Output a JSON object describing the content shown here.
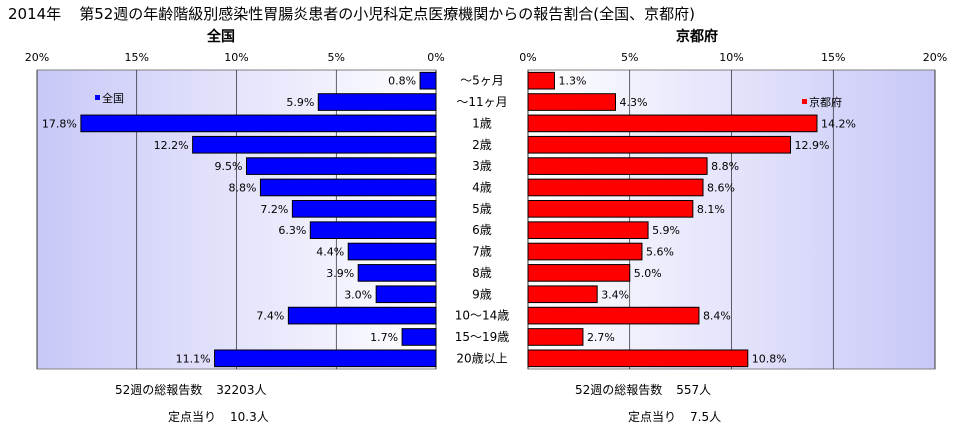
{
  "header": {
    "year": "2014年",
    "title": "第52週の年齢階級別感染性胃腸炎患者の小児科定点医療機関からの報告割合(全国、京都府)"
  },
  "panels": {
    "left_title": "全国",
    "right_title": "京都府"
  },
  "footer": {
    "left": {
      "total_label": "52週の総報告数",
      "total_value": "32203人",
      "per_label": "定点当り",
      "per_value": "10.3人"
    },
    "right": {
      "total_label": "52週の総報告数",
      "total_value": "557人",
      "per_label": "定点当り",
      "per_value": "7.5人"
    }
  },
  "colors": {
    "national": "#0000ff",
    "kyoto": "#ff0000",
    "bar_border": "#000000",
    "plot_bg_center": "#ffffff",
    "plot_bg_edge": "#c8c8f8"
  },
  "chart_data": [
    {
      "type": "bar",
      "orientation": "horizontal",
      "direction": "right-to-left",
      "title": "全国",
      "categories": [
        "～5ヶ月",
        "～11ヶ月",
        "1歳",
        "2歳",
        "3歳",
        "4歳",
        "5歳",
        "6歳",
        "7歳",
        "8歳",
        "9歳",
        "10～14歳",
        "15～19歳",
        "20歳以上"
      ],
      "series": [
        {
          "name": "全国",
          "values": [
            0.8,
            5.9,
            17.8,
            12.2,
            9.5,
            8.8,
            7.2,
            6.3,
            4.4,
            3.9,
            3.0,
            7.4,
            1.7,
            11.1
          ]
        }
      ],
      "xlim": [
        0,
        20
      ],
      "ticks": [
        "20%",
        "15%",
        "10%",
        "5%",
        "0%"
      ],
      "data_labels": [
        "0.8%",
        "5.9%",
        "17.8%",
        "12.2%",
        "9.5%",
        "8.8%",
        "7.2%",
        "6.3%",
        "4.4%",
        "3.9%",
        "3.0%",
        "7.4%",
        "1.7%",
        "11.1%"
      ],
      "legend": "top-left",
      "grid": true
    },
    {
      "type": "bar",
      "orientation": "horizontal",
      "direction": "left-to-right",
      "title": "京都府",
      "categories": [
        "～5ヶ月",
        "～11ヶ月",
        "1歳",
        "2歳",
        "3歳",
        "4歳",
        "5歳",
        "6歳",
        "7歳",
        "8歳",
        "9歳",
        "10～14歳",
        "15～19歳",
        "20歳以上"
      ],
      "series": [
        {
          "name": "京都府",
          "values": [
            1.3,
            4.3,
            14.2,
            12.9,
            8.8,
            8.6,
            8.1,
            5.9,
            5.6,
            5.0,
            3.4,
            8.4,
            2.7,
            10.8
          ]
        }
      ],
      "xlim": [
        0,
        20
      ],
      "ticks": [
        "0%",
        "5%",
        "10%",
        "15%",
        "20%"
      ],
      "data_labels": [
        "1.3%",
        "4.3%",
        "14.2%",
        "12.9%",
        "8.8%",
        "8.6%",
        "8.1%",
        "5.9%",
        "5.6%",
        "5.0%",
        "3.4%",
        "8.4%",
        "2.7%",
        "10.8%"
      ],
      "legend": "top-right",
      "grid": true
    }
  ]
}
